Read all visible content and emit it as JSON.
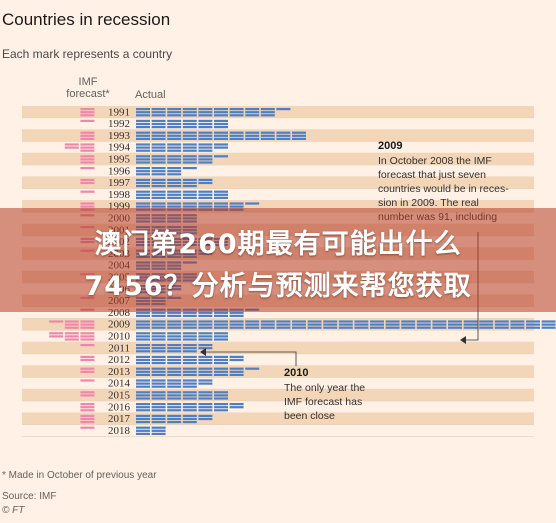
{
  "chart_data": {
    "type": "waffle",
    "title": "Countries in recession",
    "subtitle": "Each mark represents a country",
    "columns": {
      "forecast": "IMF\nforecast*",
      "actual": "Actual"
    },
    "years": [
      "1991",
      "1992",
      "1993",
      "1994",
      "1995",
      "1996",
      "1997",
      "1998",
      "1999",
      "2000",
      "2001",
      "2002",
      "2003",
      "2004",
      "2005",
      "2006",
      "2007",
      "2008",
      "2009",
      "2010",
      "2011",
      "2012",
      "2013",
      "2014",
      "2015",
      "2016",
      "2017",
      "2018"
    ],
    "forecast": [
      3,
      1,
      3,
      5,
      3,
      1,
      2,
      1,
      3,
      1,
      1,
      2,
      1,
      0,
      1,
      0,
      1,
      1,
      7,
      8,
      1,
      2,
      2,
      1,
      2,
      3,
      3,
      1
    ],
    "actual": [
      28,
      18,
      33,
      17,
      16,
      10,
      14,
      18,
      22,
      12,
      12,
      18,
      14,
      10,
      12,
      8,
      7,
      22,
      91,
      18,
      14,
      20,
      22,
      14,
      18,
      20,
      14,
      6
    ],
    "colors": {
      "forecast": "#ee88aa",
      "actual": "#4e7fc4"
    },
    "annotations": [
      {
        "id": "2009",
        "title": "2009",
        "lines": [
          "In October 2008 the IMF",
          "forecast that just seven",
          "countries would be in reces-",
          "sion in 2009. The real",
          "number was 91, including"
        ]
      },
      {
        "id": "2010",
        "title": "2010",
        "lines": [
          "The only year the",
          "IMF forecast has",
          "been close"
        ]
      }
    ],
    "footnote": "* Made in October of previous year",
    "source": "Source: IMF",
    "credit": "© FT"
  },
  "overlay": {
    "line1": "澳门第260期最有可能出什么",
    "line2": "7456？分析与预测来帮您获取"
  }
}
